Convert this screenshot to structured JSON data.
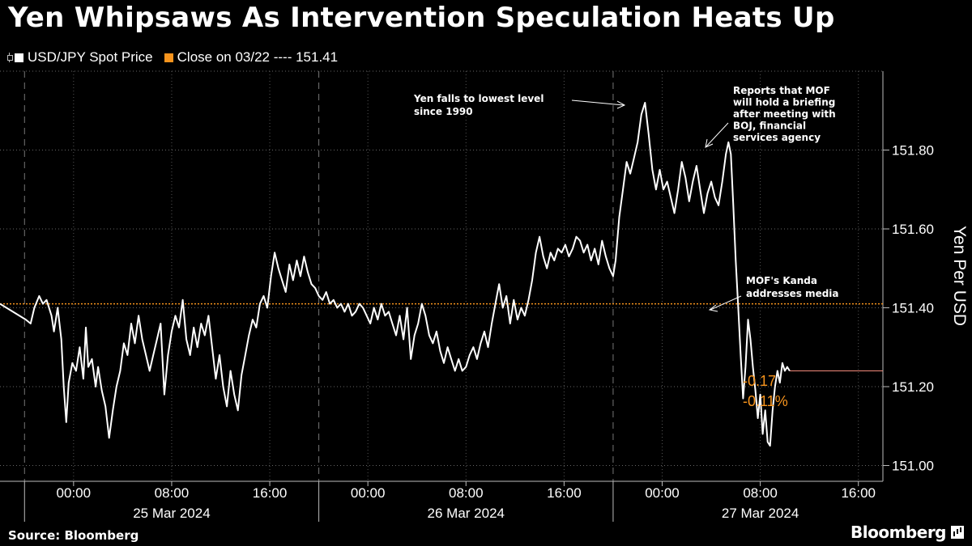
{
  "title": "Yen Whipsaws As Intervention Speculation Heats Up",
  "legend": [
    {
      "label": "USD/JPY Spot Price",
      "color": "#ffffff",
      "icon": "line-marker-icon"
    },
    {
      "label": "Close on 03/22 ---- 151.41",
      "color": "#f7941d",
      "icon": "square-icon"
    }
  ],
  "source": "Source: Bloomberg",
  "brand": "Bloomberg",
  "chart_data": {
    "type": "line",
    "title": "Yen Whipsaws As Intervention Speculation Heats Up",
    "ylabel": "Yen Per USD",
    "ylim": [
      150.96,
      152.0
    ],
    "y_ticks": [
      "151.00",
      "151.20",
      "151.40",
      "151.60",
      "151.80"
    ],
    "x_tick_labels": [
      "00:00",
      "08:00",
      "16:00",
      "00:00",
      "08:00",
      "16:00",
      "00:00",
      "08:00",
      "16:00"
    ],
    "x_day_labels": [
      "25 Mar 2024",
      "26 Mar 2024",
      "27 Mar 2024"
    ],
    "x_hours_range": [
      -6,
      66
    ],
    "grid": true,
    "reference_line": {
      "label": "Close on 03/22",
      "value": 151.41,
      "color": "#f7941d"
    },
    "last_value": 151.24,
    "change": {
      "abs": "-0.17",
      "pct": "-0.11%"
    },
    "series": [
      {
        "name": "USD/JPY Spot Price",
        "color": "#ffffff",
        "points": [
          [
            -6,
            151.41
          ],
          [
            -3.9,
            151.37
          ],
          [
            -3.5,
            151.36
          ],
          [
            -3.2,
            151.4
          ],
          [
            -2.8,
            151.43
          ],
          [
            -2.5,
            151.41
          ],
          [
            -2.2,
            151.42
          ],
          [
            -1.8,
            151.38
          ],
          [
            -1.6,
            151.34
          ],
          [
            -1.3,
            151.4
          ],
          [
            -1.0,
            151.32
          ],
          [
            -0.8,
            151.2
          ],
          [
            -0.6,
            151.11
          ],
          [
            -0.4,
            151.21
          ],
          [
            -0.1,
            151.26
          ],
          [
            0.2,
            151.24
          ],
          [
            0.5,
            151.3
          ],
          [
            0.8,
            151.22
          ],
          [
            1.0,
            151.35
          ],
          [
            1.2,
            151.25
          ],
          [
            1.5,
            151.27
          ],
          [
            1.8,
            151.2
          ],
          [
            2.0,
            151.25
          ],
          [
            2.3,
            151.19
          ],
          [
            2.6,
            151.15
          ],
          [
            2.9,
            151.07
          ],
          [
            3.2,
            151.14
          ],
          [
            3.5,
            151.2
          ],
          [
            3.8,
            151.24
          ],
          [
            4.1,
            151.31
          ],
          [
            4.4,
            151.28
          ],
          [
            4.7,
            151.36
          ],
          [
            5.0,
            151.31
          ],
          [
            5.3,
            151.38
          ],
          [
            5.6,
            151.32
          ],
          [
            5.9,
            151.28
          ],
          [
            6.2,
            151.24
          ],
          [
            6.5,
            151.28
          ],
          [
            6.8,
            151.32
          ],
          [
            7.1,
            151.36
          ],
          [
            7.4,
            151.18
          ],
          [
            7.7,
            151.28
          ],
          [
            8.0,
            151.34
          ],
          [
            8.3,
            151.38
          ],
          [
            8.6,
            151.35
          ],
          [
            8.9,
            151.42
          ],
          [
            9.2,
            151.32
          ],
          [
            9.5,
            151.28
          ],
          [
            9.8,
            151.35
          ],
          [
            10.1,
            151.3
          ],
          [
            10.4,
            151.36
          ],
          [
            10.7,
            151.33
          ],
          [
            11.0,
            151.38
          ],
          [
            11.3,
            151.3
          ],
          [
            11.6,
            151.22
          ],
          [
            11.9,
            151.28
          ],
          [
            12.2,
            151.2
          ],
          [
            12.5,
            151.15
          ],
          [
            12.8,
            151.24
          ],
          [
            13.1,
            151.18
          ],
          [
            13.4,
            151.14
          ],
          [
            13.7,
            151.23
          ],
          [
            14.0,
            151.28
          ],
          [
            14.3,
            151.33
          ],
          [
            14.6,
            151.37
          ],
          [
            14.9,
            151.35
          ],
          [
            15.2,
            151.41
          ],
          [
            15.5,
            151.43
          ],
          [
            15.8,
            151.4
          ],
          [
            16.1,
            151.48
          ],
          [
            16.4,
            151.54
          ],
          [
            16.7,
            151.5
          ],
          [
            17.0,
            151.47
          ],
          [
            17.3,
            151.44
          ],
          [
            17.6,
            151.51
          ],
          [
            17.9,
            151.47
          ],
          [
            18.2,
            151.52
          ],
          [
            18.5,
            151.48
          ],
          [
            18.8,
            151.53
          ],
          [
            19.1,
            151.49
          ],
          [
            19.4,
            151.46
          ],
          [
            19.7,
            151.45
          ],
          [
            20.0,
            151.43
          ],
          [
            20.3,
            151.42
          ],
          [
            20.6,
            151.44
          ],
          [
            20.9,
            151.41
          ],
          [
            21.2,
            151.42
          ],
          [
            21.5,
            151.4
          ],
          [
            21.8,
            151.41
          ],
          [
            22.1,
            151.39
          ],
          [
            22.4,
            151.41
          ],
          [
            22.7,
            151.38
          ],
          [
            23.0,
            151.39
          ],
          [
            23.3,
            151.41
          ],
          [
            23.6,
            151.4
          ],
          [
            23.9,
            151.38
          ],
          [
            24.2,
            151.36
          ],
          [
            24.5,
            151.4
          ],
          [
            24.8,
            151.37
          ],
          [
            25.1,
            151.41
          ],
          [
            25.4,
            151.38
          ],
          [
            25.7,
            151.39
          ],
          [
            26.0,
            151.36
          ],
          [
            26.3,
            151.33
          ],
          [
            26.6,
            151.38
          ],
          [
            26.9,
            151.32
          ],
          [
            27.2,
            151.4
          ],
          [
            27.5,
            151.27
          ],
          [
            27.8,
            151.33
          ],
          [
            28.1,
            151.36
          ],
          [
            28.4,
            151.41
          ],
          [
            28.7,
            151.38
          ],
          [
            29.0,
            151.33
          ],
          [
            29.3,
            151.31
          ],
          [
            29.6,
            151.34
          ],
          [
            29.9,
            151.29
          ],
          [
            30.2,
            151.26
          ],
          [
            30.5,
            151.3
          ],
          [
            30.8,
            151.27
          ],
          [
            31.1,
            151.24
          ],
          [
            31.4,
            151.27
          ],
          [
            31.7,
            151.24
          ],
          [
            32.0,
            151.25
          ],
          [
            32.3,
            151.28
          ],
          [
            32.6,
            151.3
          ],
          [
            32.9,
            151.27
          ],
          [
            33.2,
            151.31
          ],
          [
            33.5,
            151.34
          ],
          [
            33.8,
            151.3
          ],
          [
            34.1,
            151.36
          ],
          [
            34.4,
            151.41
          ],
          [
            34.7,
            151.46
          ],
          [
            35.0,
            151.4
          ],
          [
            35.3,
            151.43
          ],
          [
            35.6,
            151.36
          ],
          [
            35.9,
            151.42
          ],
          [
            36.2,
            151.37
          ],
          [
            36.5,
            151.4
          ],
          [
            36.8,
            151.38
          ],
          [
            37.1,
            151.42
          ],
          [
            37.4,
            151.47
          ],
          [
            37.7,
            151.54
          ],
          [
            38.0,
            151.58
          ],
          [
            38.3,
            151.53
          ],
          [
            38.6,
            151.5
          ],
          [
            38.9,
            151.54
          ],
          [
            39.2,
            151.52
          ],
          [
            39.5,
            151.55
          ],
          [
            39.8,
            151.54
          ],
          [
            40.1,
            151.56
          ],
          [
            40.4,
            151.53
          ],
          [
            40.7,
            151.55
          ],
          [
            41.0,
            151.58
          ],
          [
            41.3,
            151.57
          ],
          [
            41.6,
            151.54
          ],
          [
            41.9,
            151.56
          ],
          [
            42.2,
            151.52
          ],
          [
            42.5,
            151.55
          ],
          [
            42.8,
            151.51
          ],
          [
            43.1,
            151.57
          ],
          [
            43.4,
            151.53
          ],
          [
            43.7,
            151.5
          ],
          [
            44.0,
            151.48
          ],
          [
            44.2,
            151.52
          ],
          [
            44.5,
            151.63
          ],
          [
            44.8,
            151.7
          ],
          [
            45.1,
            151.77
          ],
          [
            45.4,
            151.74
          ],
          [
            45.7,
            151.78
          ],
          [
            46.0,
            151.82
          ],
          [
            46.3,
            151.89
          ],
          [
            46.6,
            151.92
          ],
          [
            46.9,
            151.84
          ],
          [
            47.2,
            151.75
          ],
          [
            47.5,
            151.7
          ],
          [
            47.8,
            151.75
          ],
          [
            48.1,
            151.7
          ],
          [
            48.4,
            151.72
          ],
          [
            48.7,
            151.68
          ],
          [
            49.0,
            151.64
          ],
          [
            49.3,
            151.7
          ],
          [
            49.6,
            151.77
          ],
          [
            49.9,
            151.73
          ],
          [
            50.2,
            151.67
          ],
          [
            50.5,
            151.72
          ],
          [
            50.8,
            151.76
          ],
          [
            51.1,
            151.7
          ],
          [
            51.4,
            151.64
          ],
          [
            51.7,
            151.69
          ],
          [
            52.0,
            151.72
          ],
          [
            52.3,
            151.68
          ],
          [
            52.6,
            151.66
          ],
          [
            52.9,
            151.72
          ],
          [
            53.2,
            151.79
          ],
          [
            53.4,
            151.82
          ],
          [
            53.6,
            151.79
          ],
          [
            53.8,
            151.66
          ],
          [
            54.0,
            151.52
          ],
          [
            54.2,
            151.4
          ],
          [
            54.4,
            151.28
          ],
          [
            54.6,
            151.17
          ],
          [
            54.8,
            151.25
          ],
          [
            55.0,
            151.37
          ],
          [
            55.2,
            151.32
          ],
          [
            55.4,
            151.25
          ],
          [
            55.6,
            151.19
          ],
          [
            55.8,
            151.12
          ],
          [
            56.0,
            151.18
          ],
          [
            56.2,
            151.08
          ],
          [
            56.4,
            151.14
          ],
          [
            56.6,
            151.06
          ],
          [
            56.8,
            151.05
          ],
          [
            57.0,
            151.14
          ],
          [
            57.2,
            151.2
          ],
          [
            57.4,
            151.24
          ],
          [
            57.6,
            151.21
          ],
          [
            57.8,
            151.26
          ],
          [
            58.0,
            151.24
          ],
          [
            58.2,
            151.25
          ],
          [
            58.4,
            151.24
          ]
        ]
      }
    ],
    "annotations": [
      {
        "lines": [
          "Yen falls to lowest level",
          "since 1990"
        ]
      },
      {
        "lines": [
          "Reports that MOF",
          "will hold a briefing",
          "after meeting with",
          "BOJ, financial",
          "services agency"
        ]
      },
      {
        "lines": [
          "MOF's Kanda",
          "addresses media"
        ]
      }
    ]
  }
}
